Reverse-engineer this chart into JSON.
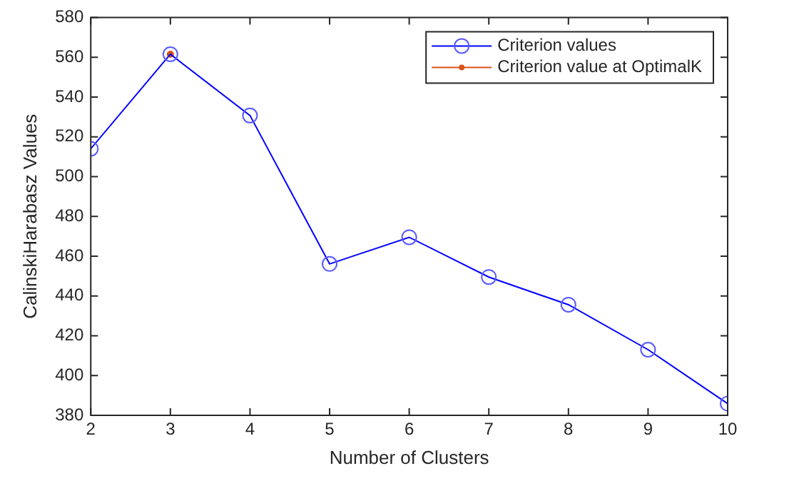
{
  "chart_data": {
    "type": "line",
    "xlabel": "Number of Clusters",
    "ylabel": "CalinskiHarabasz Values",
    "x": [
      2,
      3,
      4,
      5,
      6,
      7,
      8,
      9,
      10
    ],
    "series": [
      {
        "name": "Criterion values",
        "color": "#0000ff",
        "marker": "circle",
        "values": [
          514,
          561.5,
          530.7,
          456.1,
          469.5,
          449.5,
          435.6,
          413,
          385.9
        ]
      },
      {
        "name": "Criterion value at OptimalK",
        "color": "#d95319",
        "marker": "circle",
        "x": [
          3
        ],
        "values": [
          561.5
        ]
      }
    ],
    "xlim": [
      2,
      10
    ],
    "xticks": [
      2,
      3,
      4,
      5,
      6,
      7,
      8,
      9,
      10
    ],
    "ylim": [
      380,
      580
    ],
    "yticks": [
      380,
      400,
      420,
      440,
      460,
      480,
      500,
      520,
      540,
      560,
      580
    ],
    "grid": false,
    "legend": "top right"
  }
}
